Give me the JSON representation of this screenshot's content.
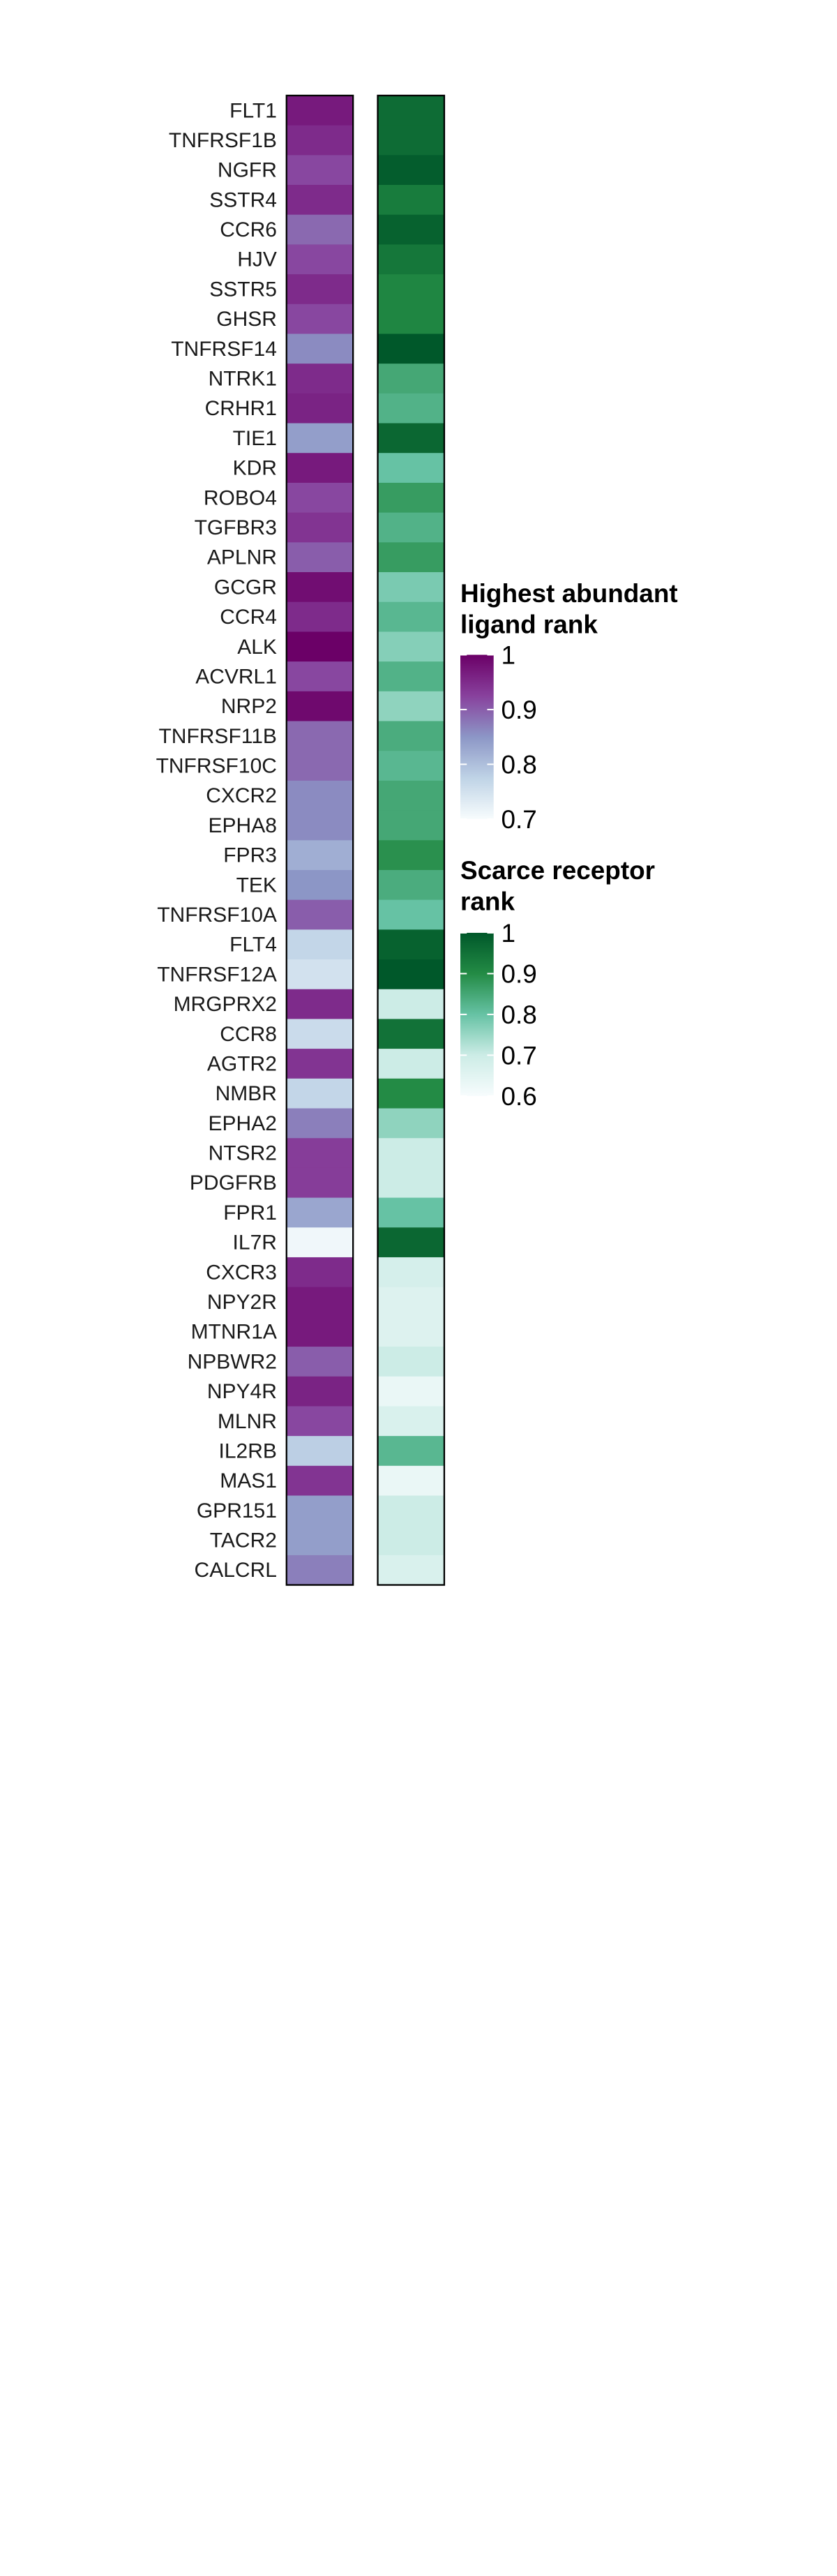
{
  "chart_data": {
    "type": "heatmap",
    "genes": [
      "FLT1",
      "TNFRSF1B",
      "NGFR",
      "SSTR4",
      "CCR6",
      "HJV",
      "SSTR5",
      "GHSR",
      "TNFRSF14",
      "NTRK1",
      "CRHR1",
      "TIE1",
      "KDR",
      "ROBO4",
      "TGFBR3",
      "APLNR",
      "GCGR",
      "CCR4",
      "ALK",
      "ACVRL1",
      "NRP2",
      "TNFRSF11B",
      "TNFRSF10C",
      "CXCR2",
      "EPHA8",
      "FPR3",
      "TEK",
      "TNFRSF10A",
      "FLT4",
      "TNFRSF12A",
      "MRGPRX2",
      "CCR8",
      "AGTR2",
      "NMBR",
      "EPHA2",
      "NTSR2",
      "PDGFRB",
      "FPR1",
      "IL7R",
      "CXCR3",
      "NPY2R",
      "MTNR1A",
      "NPBWR2",
      "NPY4R",
      "MLNR",
      "IL2RB",
      "MAS1",
      "GPR151",
      "TACR2",
      "CALCRL"
    ],
    "ligand_rank": [
      0.97,
      0.95,
      0.92,
      0.95,
      0.89,
      0.92,
      0.95,
      0.92,
      0.86,
      0.95,
      0.96,
      0.84,
      0.97,
      0.92,
      0.94,
      0.9,
      0.985,
      0.95,
      1.0,
      0.92,
      0.99,
      0.89,
      0.89,
      0.86,
      0.86,
      0.82,
      0.85,
      0.9,
      0.77,
      0.75,
      0.95,
      0.76,
      0.94,
      0.77,
      0.87,
      0.93,
      0.93,
      0.83,
      0.71,
      0.95,
      0.97,
      0.97,
      0.9,
      0.96,
      0.92,
      0.78,
      0.94,
      0.84,
      0.84,
      0.87
    ],
    "receptor_rank": [
      0.96,
      0.96,
      0.99,
      0.93,
      0.98,
      0.94,
      0.91,
      0.91,
      1.0,
      0.85,
      0.83,
      0.97,
      0.8,
      0.87,
      0.83,
      0.87,
      0.78,
      0.82,
      0.77,
      0.83,
      0.76,
      0.84,
      0.82,
      0.85,
      0.85,
      0.89,
      0.84,
      0.8,
      0.98,
      1.0,
      0.7,
      0.95,
      0.7,
      0.9,
      0.76,
      0.7,
      0.7,
      0.8,
      0.97,
      0.68,
      0.66,
      0.66,
      0.7,
      0.63,
      0.67,
      0.82,
      0.63,
      0.7,
      0.7,
      0.67
    ],
    "legends": [
      {
        "title_lines": [
          "Highest abundant",
          "ligand rank"
        ],
        "ticks": [
          "1",
          "0.9",
          "0.8",
          "0.7"
        ],
        "range": [
          0.7,
          1.0
        ]
      },
      {
        "title_lines": [
          "Scarce receptor",
          "rank"
        ],
        "ticks": [
          "1",
          "0.9",
          "0.8",
          "0.7",
          "0.6"
        ],
        "range": [
          0.6,
          1.0
        ]
      }
    ],
    "colors": {
      "ligand_scale": [
        "#F7FCFD",
        "#BFD3E6",
        "#8C96C6",
        "#88419D",
        "#6B0067"
      ],
      "receptor_scale": [
        "#F7FCFD",
        "#CCECE6",
        "#66C2A4",
        "#238B45",
        "#00582A"
      ],
      "cell_border": "#000000"
    }
  }
}
